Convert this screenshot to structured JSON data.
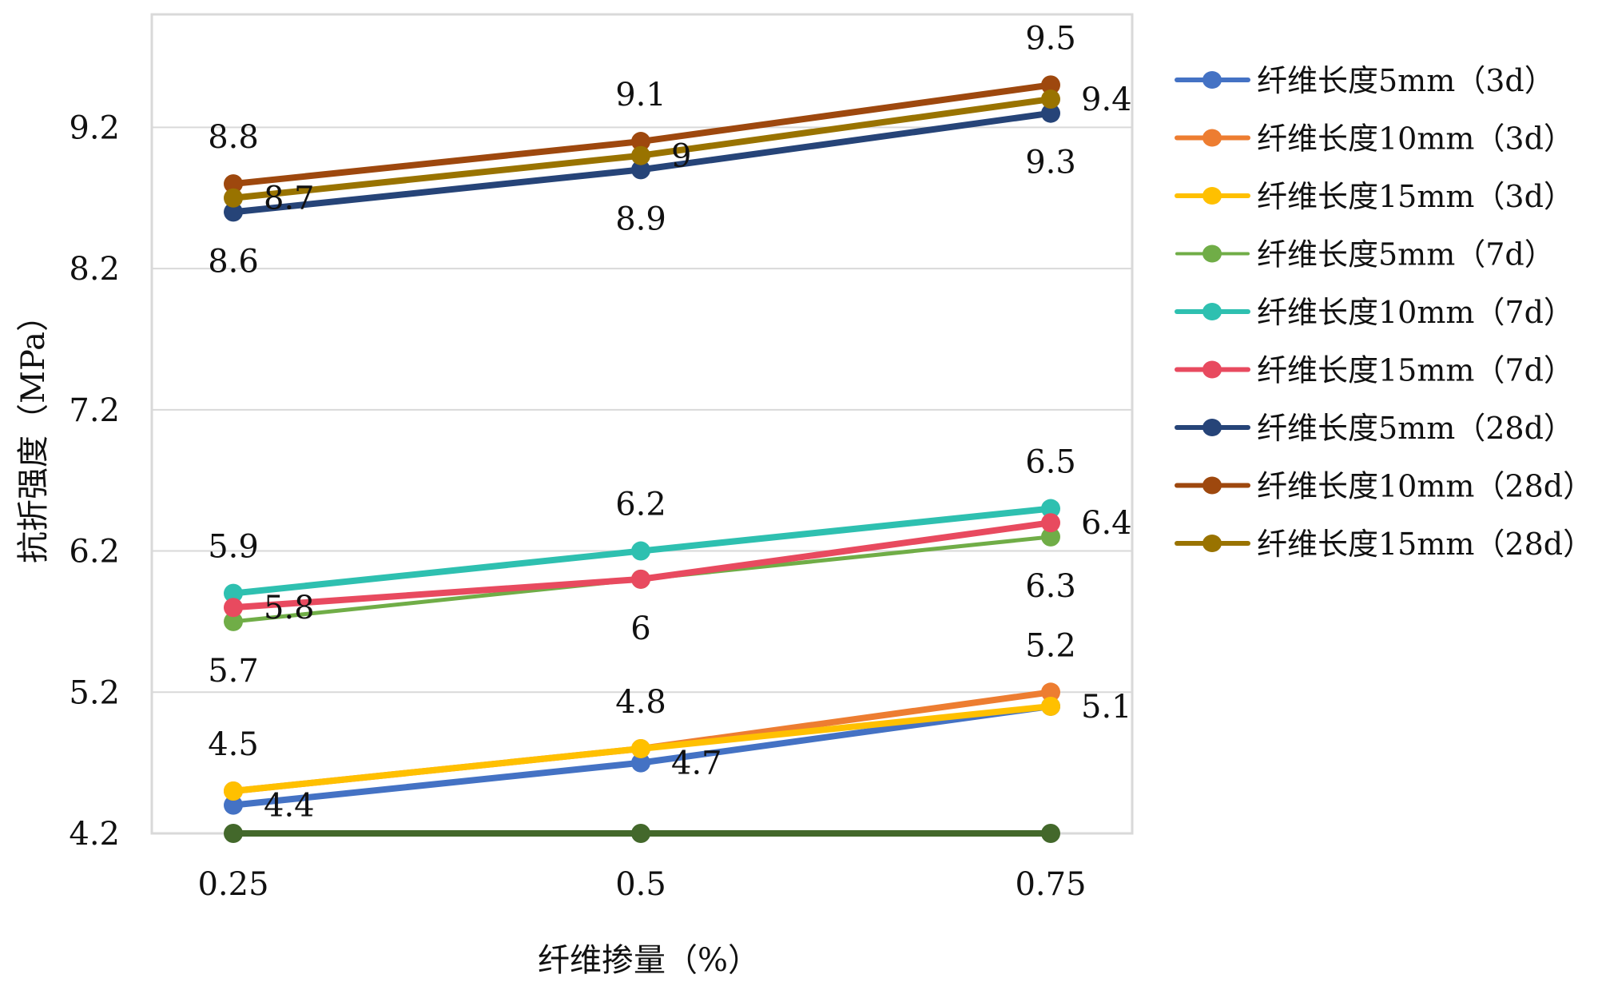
{
  "chart_data": {
    "type": "line",
    "title": "",
    "xlabel": "纤维掺量（%）",
    "ylabel": "抗折强度（MPa）",
    "x": [
      0.25,
      0.5,
      0.75
    ],
    "x_tick_labels": [
      "0.25",
      "0.5",
      "0.75"
    ],
    "ylim": [
      4.2,
      10.0
    ],
    "y_ticks": [
      4.2,
      5.2,
      6.2,
      7.2,
      8.2,
      9.2
    ],
    "y_tick_labels": [
      "4.2",
      "5.2",
      "6.2",
      "7.2",
      "8.2",
      "9.2"
    ],
    "grid": true,
    "legend_position": "right",
    "series": [
      {
        "name": "纤维长度5mm（3d）",
        "color": "#4472C4",
        "values": [
          4.4,
          4.7,
          5.1
        ],
        "labels": [
          "4.4",
          "4.7",
          ""
        ],
        "label_pos": "right"
      },
      {
        "name": "纤维长度10mm（3d）",
        "color": "#ED7D31",
        "values": [
          4.5,
          4.8,
          5.2
        ],
        "labels": [
          "4.5",
          "4.8",
          "5.2"
        ],
        "label_pos": "above"
      },
      {
        "name": "纤维长度15mm（3d）",
        "color": "#FFC000",
        "values": [
          4.5,
          4.8,
          5.1
        ],
        "labels": [
          "",
          "",
          "5.1"
        ],
        "label_pos": "right"
      },
      {
        "name": "纤维长度5mm（7d）",
        "color": "#70AD47",
        "values": [
          5.7,
          6.0,
          6.3
        ],
        "labels": [
          "5.7",
          "6",
          "6.3"
        ],
        "label_pos": "below",
        "thin": true
      },
      {
        "name": "纤维长度10mm（7d）",
        "color": "#2EC0B0",
        "values": [
          5.9,
          6.2,
          6.5
        ],
        "labels": [
          "5.9",
          "6.2",
          "6.5"
        ],
        "label_pos": "above"
      },
      {
        "name": "纤维长度15mm（7d）",
        "color": "#E84A5F",
        "values": [
          5.8,
          6.0,
          6.4
        ],
        "labels": [
          "5.8",
          "",
          "6.4"
        ],
        "label_pos": "right"
      },
      {
        "name": "纤维长度5mm（28d）",
        "color": "#264478",
        "values": [
          8.6,
          8.9,
          9.3
        ],
        "labels": [
          "8.6",
          "8.9",
          "9.3"
        ],
        "label_pos": "below"
      },
      {
        "name": "纤维长度10mm（28d）",
        "color": "#9E480E",
        "values": [
          8.8,
          9.1,
          9.5
        ],
        "labels": [
          "8.8",
          "9.1",
          "9.5"
        ],
        "label_pos": "above"
      },
      {
        "name": "纤维长度15mm（28d）",
        "color": "#997300",
        "values": [
          8.7,
          9.0,
          9.4
        ],
        "labels": [
          "8.7",
          "9",
          "9.4"
        ],
        "label_pos": "right"
      },
      {
        "name": "",
        "color": "#43682B",
        "values": [
          4.2,
          4.2,
          4.2
        ],
        "labels": [
          "",
          "",
          ""
        ],
        "label_pos": "none",
        "hide_legend": true
      }
    ]
  }
}
